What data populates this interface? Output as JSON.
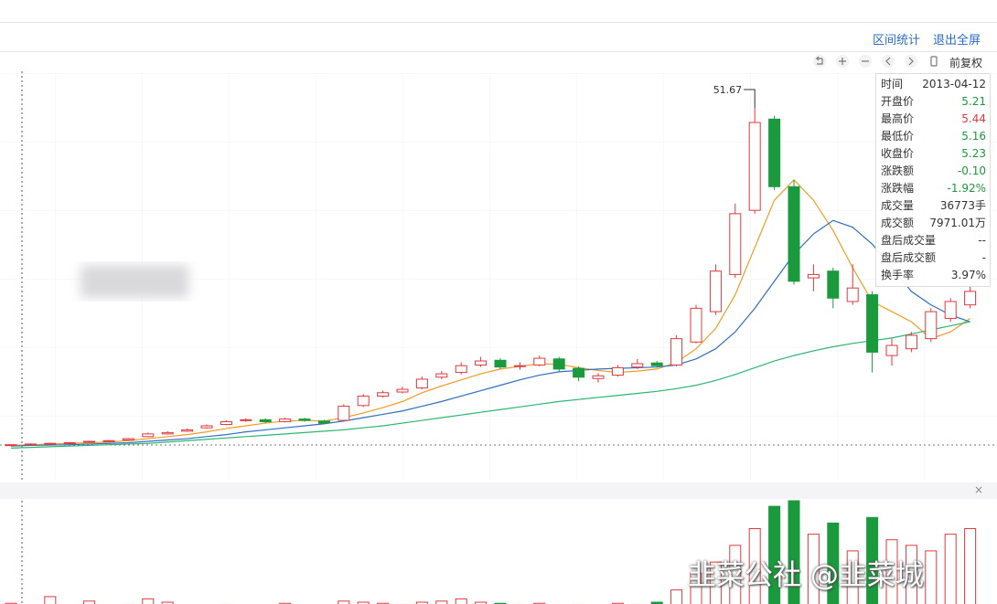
{
  "header": {
    "links": [
      "区间统计",
      "退出全屏"
    ]
  },
  "toolbar": {
    "label": "前复权"
  },
  "tooltip": {
    "rows": [
      {
        "label": "时间",
        "value": "2013-04-12",
        "color": "#333333"
      },
      {
        "label": "开盘价",
        "value": "5.21",
        "color": "#1a9a3c"
      },
      {
        "label": "最高价",
        "value": "5.44",
        "color": "#e0393e"
      },
      {
        "label": "最低价",
        "value": "5.16",
        "color": "#1a9a3c"
      },
      {
        "label": "收盘价",
        "value": "5.23",
        "color": "#1a9a3c"
      },
      {
        "label": "涨跌额",
        "value": "-0.10",
        "color": "#1a9a3c"
      },
      {
        "label": "涨跌幅",
        "value": "-1.92%",
        "color": "#1a9a3c"
      },
      {
        "label": "成交量",
        "value": "36773手",
        "color": "#333333"
      },
      {
        "label": "成交额",
        "value": "7971.01万",
        "color": "#333333"
      },
      {
        "label": "盘后成交量",
        "value": "--",
        "color": "#333333"
      },
      {
        "label": "盘后成交额",
        "value": "-",
        "color": "#333333"
      },
      {
        "label": "换手率",
        "value": "3.97%",
        "color": "#333333"
      }
    ]
  },
  "watermark": "韭菜公社 @韭菜城",
  "chart_data": {
    "type": "candlestick",
    "up_color": "#e0393e",
    "down_color": "#1a9a3c",
    "ylim": [
      0,
      56
    ],
    "vlim": [
      0,
      100
    ],
    "open": [
      1.7,
      1.8,
      1.95,
      2.0,
      2.2,
      2.3,
      2.5,
      3.0,
      3.4,
      3.8,
      4.3,
      4.8,
      5.4,
      5.5,
      5.2,
      5.6,
      5.3,
      5.4,
      7.6,
      9.0,
      9.6,
      10.2,
      11.8,
      12.5,
      13.6,
      14.3,
      13.4,
      13.6,
      14.5,
      13.1,
      11.6,
      12.1,
      13.3,
      13.9,
      13.6,
      17.0,
      21.5,
      27.0,
      36.5,
      50.0,
      40.0,
      26.5,
      27.5,
      23.0,
      24.0,
      15.0,
      16.0,
      17.5,
      20.5,
      22.5
    ],
    "high": [
      1.9,
      2.0,
      2.1,
      2.2,
      2.4,
      2.5,
      2.8,
      3.6,
      3.8,
      4.2,
      4.8,
      5.4,
      5.7,
      5.7,
      5.8,
      5.8,
      5.5,
      7.8,
      9.3,
      9.8,
      10.4,
      11.9,
      12.7,
      14.0,
      14.8,
      14.6,
      14.0,
      15.0,
      14.8,
      13.4,
      12.4,
      13.6,
      14.5,
      14.2,
      18.0,
      22.5,
      28.5,
      37.5,
      51.67,
      50.5,
      41.0,
      28.5,
      28.0,
      28.5,
      24.5,
      17.5,
      18.5,
      22.0,
      23.5,
      25.5
    ],
    "low": [
      1.6,
      1.7,
      1.85,
      1.9,
      2.1,
      2.2,
      2.4,
      2.9,
      3.3,
      3.7,
      4.2,
      4.7,
      5.2,
      5.0,
      5.1,
      5.2,
      4.8,
      5.3,
      7.4,
      8.8,
      9.4,
      10.0,
      11.5,
      12.2,
      13.3,
      13.0,
      12.9,
      13.4,
      12.6,
      11.2,
      11.0,
      11.9,
      13.0,
      13.2,
      13.4,
      16.8,
      21.0,
      26.5,
      36.0,
      39.5,
      25.5,
      24.5,
      22.0,
      22.5,
      12.5,
      13.5,
      15.5,
      17.0,
      20.0,
      22.0
    ],
    "close": [
      1.8,
      1.9,
      2.0,
      2.1,
      2.3,
      2.4,
      2.7,
      3.4,
      3.6,
      4.0,
      4.6,
      5.2,
      5.5,
      5.2,
      5.6,
      5.4,
      5.0,
      7.5,
      9.0,
      9.5,
      10.0,
      11.5,
      12.3,
      13.5,
      14.2,
      13.3,
      13.5,
      14.6,
      13.0,
      11.8,
      12.0,
      13.2,
      13.8,
      13.5,
      17.5,
      22.0,
      27.5,
      36.0,
      49.5,
      40.0,
      26.0,
      27.0,
      23.5,
      25.0,
      15.5,
      16.5,
      18.0,
      21.5,
      23.0,
      24.5
    ],
    "volume": [
      8,
      6,
      14,
      6,
      10,
      5,
      7,
      12,
      9,
      6,
      5,
      7,
      6,
      5,
      8,
      6,
      5,
      10,
      9,
      8,
      7,
      9,
      10,
      12,
      9,
      8,
      7,
      8,
      6,
      7,
      6,
      8,
      7,
      9,
      20,
      35,
      45,
      60,
      75,
      95,
      100,
      70,
      80,
      55,
      85,
      65,
      60,
      55,
      70,
      75
    ],
    "series": [
      {
        "color": "#f39c23",
        "values": [
          1.7,
          1.8,
          1.9,
          2.0,
          2.1,
          2.2,
          2.4,
          2.7,
          3.0,
          3.3,
          3.7,
          4.2,
          4.6,
          5.0,
          5.3,
          5.4,
          5.3,
          5.8,
          6.5,
          7.3,
          8.2,
          9.5,
          10.5,
          11.4,
          12.3,
          13.0,
          13.4,
          13.8,
          13.7,
          13.2,
          12.8,
          12.5,
          12.7,
          13.0,
          14.0,
          16.0,
          19.0,
          24.0,
          31.0,
          38.0,
          41.0,
          38.0,
          33.5,
          28.0,
          23.0,
          21.5,
          20.0,
          17.5,
          18.5,
          20.5
        ]
      },
      {
        "color": "#2f6fc4",
        "values": [
          1.6,
          1.7,
          1.75,
          1.8,
          1.9,
          2.0,
          2.1,
          2.3,
          2.5,
          2.7,
          3.0,
          3.3,
          3.7,
          4.0,
          4.3,
          4.6,
          4.9,
          5.3,
          5.8,
          6.3,
          6.8,
          7.5,
          8.2,
          9.0,
          9.8,
          10.6,
          11.4,
          12.1,
          12.6,
          12.8,
          13.0,
          13.1,
          13.2,
          13.3,
          13.6,
          14.5,
          16.0,
          18.5,
          22.0,
          26.0,
          30.0,
          33.0,
          35.0,
          34.0,
          31.5,
          28.0,
          24.5,
          22.5,
          21.0,
          20.0
        ]
      },
      {
        "color": "#2bb673",
        "values": [
          1.3,
          1.4,
          1.5,
          1.6,
          1.7,
          1.8,
          1.9,
          2.0,
          2.2,
          2.4,
          2.6,
          2.8,
          3.0,
          3.2,
          3.4,
          3.6,
          3.8,
          4.0,
          4.3,
          4.6,
          5.0,
          5.4,
          5.8,
          6.2,
          6.6,
          7.0,
          7.4,
          7.8,
          8.2,
          8.5,
          8.8,
          9.1,
          9.4,
          9.7,
          10.1,
          10.6,
          11.3,
          12.2,
          13.2,
          14.2,
          15.0,
          15.7,
          16.3,
          16.8,
          17.2,
          17.6,
          18.2,
          18.8,
          19.4,
          20.0
        ]
      }
    ]
  }
}
